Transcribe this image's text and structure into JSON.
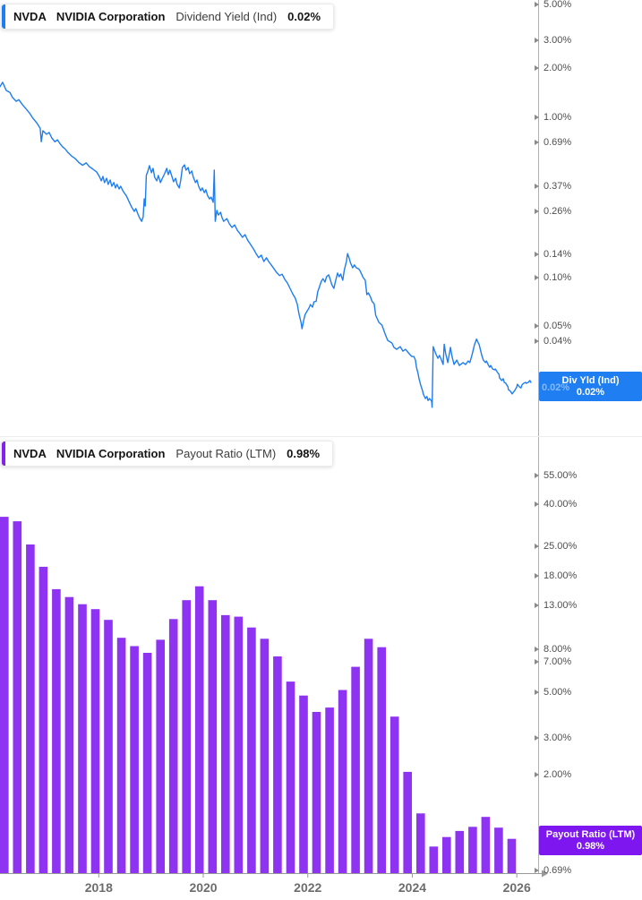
{
  "top_panel": {
    "legend": {
      "ticker": "NVDA",
      "company": "NVIDIA Corporation",
      "metric": "Dividend Yield (Ind)",
      "value": "0.02%"
    },
    "value_label": {
      "title": "Div Yld (Ind)",
      "value": "0.02%"
    },
    "hidden_tick_label": "0.02%",
    "y_ticks": [
      {
        "label": "5.00%",
        "v": 5
      },
      {
        "label": "3.00%",
        "v": 3
      },
      {
        "label": "2.00%",
        "v": 2
      },
      {
        "label": "1.00%",
        "v": 1
      },
      {
        "label": "0.69%",
        "v": 0.69
      },
      {
        "label": "0.37%",
        "v": 0.37
      },
      {
        "label": "0.26%",
        "v": 0.26
      },
      {
        "label": "0.14%",
        "v": 0.14
      },
      {
        "label": "0.10%",
        "v": 0.1
      },
      {
        "label": "0.05%",
        "v": 0.05
      },
      {
        "label": "0.04%",
        "v": 0.04
      }
    ]
  },
  "bottom_panel": {
    "legend": {
      "ticker": "NVDA",
      "company": "NVIDIA Corporation",
      "metric": "Payout Ratio (LTM)",
      "value": "0.98%"
    },
    "value_label": {
      "title": "Payout Ratio (LTM)",
      "value": "0.98%"
    },
    "y_ticks": [
      {
        "label": "55.00%",
        "v": 55
      },
      {
        "label": "40.00%",
        "v": 40
      },
      {
        "label": "25.00%",
        "v": 25
      },
      {
        "label": "18.00%",
        "v": 18
      },
      {
        "label": "13.00%",
        "v": 13
      },
      {
        "label": "8.00%",
        "v": 8
      },
      {
        "label": "7.00%",
        "v": 7
      },
      {
        "label": "5.00%",
        "v": 5
      },
      {
        "label": "3.00%",
        "v": 3
      },
      {
        "label": "2.00%",
        "v": 2
      },
      {
        "label": "0.69%",
        "v": 0.69
      }
    ]
  },
  "x_axis": {
    "year_labels": [
      "2018",
      "2020",
      "2022",
      "2024",
      "2026"
    ]
  },
  "colors": {
    "line_blue": "#1d7df2",
    "blue_box": "#1f7ff2",
    "blue_accent": "#1d7df2",
    "bar_purple": "#8d33f1",
    "purple_box": "#7d16ef",
    "purple_accent": "#8421ee",
    "axis_gray": "#b0b0b0",
    "xaxis_gray": "#999999",
    "tick_gray": "#8a8a8a"
  },
  "chart_data": [
    {
      "type": "line",
      "title": "NVDA NVIDIA Corporation Dividend Yield (Ind)",
      "series_name": "Div Yld (Ind)",
      "last_value_pct": 0.02,
      "y_scale": "log",
      "x_range_years": [
        2016.1,
        2026.4
      ],
      "ytick_values_pct": [
        5,
        3,
        2,
        1,
        0.69,
        0.37,
        0.26,
        0.14,
        0.1,
        0.05,
        0.04,
        0.02
      ],
      "legend_position": "top-left",
      "grid": false,
      "points": [
        [
          2016.11,
          1.54
        ],
        [
          2016.16,
          1.64
        ],
        [
          2016.23,
          1.46
        ],
        [
          2016.3,
          1.42
        ],
        [
          2016.35,
          1.32
        ],
        [
          2016.42,
          1.25
        ],
        [
          2016.47,
          1.28
        ],
        [
          2016.54,
          1.19
        ],
        [
          2016.61,
          1.12
        ],
        [
          2016.68,
          1.05
        ],
        [
          2016.74,
          0.98
        ],
        [
          2016.81,
          0.92
        ],
        [
          2016.88,
          0.85
        ],
        [
          2016.9,
          0.7
        ],
        [
          2016.93,
          0.82
        ],
        [
          2017.0,
          0.78
        ],
        [
          2017.05,
          0.8
        ],
        [
          2017.1,
          0.74
        ],
        [
          2017.16,
          0.7
        ],
        [
          2017.21,
          0.72
        ],
        [
          2017.26,
          0.68
        ],
        [
          2017.31,
          0.65
        ],
        [
          2017.36,
          0.63
        ],
        [
          2017.41,
          0.6
        ],
        [
          2017.48,
          0.57
        ],
        [
          2017.55,
          0.55
        ],
        [
          2017.62,
          0.52
        ],
        [
          2017.69,
          0.5
        ],
        [
          2017.76,
          0.517
        ],
        [
          2017.82,
          0.49
        ],
        [
          2017.89,
          0.472
        ],
        [
          2017.96,
          0.454
        ],
        [
          2018.01,
          0.426
        ],
        [
          2018.05,
          0.4
        ],
        [
          2018.08,
          0.426
        ],
        [
          2018.11,
          0.39
        ],
        [
          2018.15,
          0.415
        ],
        [
          2018.18,
          0.38
        ],
        [
          2018.22,
          0.405
        ],
        [
          2018.25,
          0.37
        ],
        [
          2018.29,
          0.39
        ],
        [
          2018.32,
          0.361
        ],
        [
          2018.35,
          0.38
        ],
        [
          2018.39,
          0.356
        ],
        [
          2018.42,
          0.37
        ],
        [
          2018.47,
          0.343
        ],
        [
          2018.53,
          0.322
        ],
        [
          2018.58,
          0.297
        ],
        [
          2018.63,
          0.274
        ],
        [
          2018.68,
          0.258
        ],
        [
          2018.71,
          0.269
        ],
        [
          2018.75,
          0.248
        ],
        [
          2018.78,
          0.236
        ],
        [
          2018.82,
          0.224
        ],
        [
          2018.85,
          0.239
        ],
        [
          2018.87,
          0.309
        ],
        [
          2018.89,
          0.279
        ],
        [
          2018.91,
          0.432
        ],
        [
          2018.94,
          0.46
        ],
        [
          2018.97,
          0.497
        ],
        [
          2019.01,
          0.449
        ],
        [
          2019.04,
          0.478
        ],
        [
          2019.07,
          0.421
        ],
        [
          2019.11,
          0.4
        ],
        [
          2019.14,
          0.432
        ],
        [
          2019.18,
          0.39
        ],
        [
          2019.21,
          0.41
        ],
        [
          2019.26,
          0.443
        ],
        [
          2019.3,
          0.478
        ],
        [
          2019.33,
          0.437
        ],
        [
          2019.36,
          0.466
        ],
        [
          2019.4,
          0.426
        ],
        [
          2019.43,
          0.395
        ],
        [
          2019.47,
          0.415
        ],
        [
          2019.5,
          0.38
        ],
        [
          2019.54,
          0.361
        ],
        [
          2019.57,
          0.405
        ],
        [
          2019.6,
          0.484
        ],
        [
          2019.64,
          0.503
        ],
        [
          2019.67,
          0.466
        ],
        [
          2019.71,
          0.484
        ],
        [
          2019.74,
          0.443
        ],
        [
          2019.78,
          0.46
        ],
        [
          2019.81,
          0.421
        ],
        [
          2019.85,
          0.39
        ],
        [
          2019.88,
          0.405
        ],
        [
          2019.91,
          0.37
        ],
        [
          2019.95,
          0.347
        ],
        [
          2019.98,
          0.361
        ],
        [
          2020.02,
          0.338
        ],
        [
          2020.05,
          0.352
        ],
        [
          2020.08,
          0.325
        ],
        [
          2020.12,
          0.309
        ],
        [
          2020.15,
          0.317
        ],
        [
          2020.19,
          0.294
        ],
        [
          2020.21,
          0.466
        ],
        [
          2020.23,
          0.224
        ],
        [
          2020.26,
          0.262
        ],
        [
          2020.29,
          0.245
        ],
        [
          2020.33,
          0.255
        ],
        [
          2020.36,
          0.236
        ],
        [
          2020.39,
          0.224
        ],
        [
          2020.45,
          0.233
        ],
        [
          2020.5,
          0.216
        ],
        [
          2020.55,
          0.205
        ],
        [
          2020.6,
          0.213
        ],
        [
          2020.65,
          0.197
        ],
        [
          2020.7,
          0.188
        ],
        [
          2020.75,
          0.178
        ],
        [
          2020.8,
          0.185
        ],
        [
          2020.85,
          0.171
        ],
        [
          2020.91,
          0.16
        ],
        [
          2020.96,
          0.151
        ],
        [
          2021.01,
          0.141
        ],
        [
          2021.06,
          0.133
        ],
        [
          2021.11,
          0.138
        ],
        [
          2021.16,
          0.126
        ],
        [
          2021.21,
          0.133
        ],
        [
          2021.25,
          0.126
        ],
        [
          2021.3,
          0.12
        ],
        [
          2021.35,
          0.114
        ],
        [
          2021.4,
          0.108
        ],
        [
          2021.46,
          0.103
        ],
        [
          2021.51,
          0.105
        ],
        [
          2021.56,
          0.0975
        ],
        [
          2021.61,
          0.0925
        ],
        [
          2021.66,
          0.0857
        ],
        [
          2021.71,
          0.0794
        ],
        [
          2021.76,
          0.0745
        ],
        [
          2021.8,
          0.0681
        ],
        [
          2021.83,
          0.0598
        ],
        [
          2021.87,
          0.0527
        ],
        [
          2021.89,
          0.0481
        ],
        [
          2021.92,
          0.054
        ],
        [
          2021.95,
          0.059
        ],
        [
          2021.99,
          0.0622
        ],
        [
          2022.02,
          0.0643
        ],
        [
          2022.05,
          0.0681
        ],
        [
          2022.09,
          0.0655
        ],
        [
          2022.12,
          0.0707
        ],
        [
          2022.16,
          0.0712
        ],
        [
          2022.19,
          0.0814
        ],
        [
          2022.23,
          0.0891
        ],
        [
          2022.26,
          0.095
        ],
        [
          2022.29,
          0.0985
        ],
        [
          2022.33,
          0.0938
        ],
        [
          2022.36,
          0.1013
        ],
        [
          2022.4,
          0.104
        ],
        [
          2022.43,
          0.0975
        ],
        [
          2022.46,
          0.0903
        ],
        [
          2022.5,
          0.0857
        ],
        [
          2022.53,
          0.095
        ],
        [
          2022.57,
          0.1067
        ],
        [
          2022.6,
          0.1013
        ],
        [
          2022.63,
          0.1053
        ],
        [
          2022.67,
          0.0963
        ],
        [
          2022.7,
          0.112
        ],
        [
          2022.74,
          0.126
        ],
        [
          2022.76,
          0.141
        ],
        [
          2022.79,
          0.133
        ],
        [
          2022.82,
          0.123
        ],
        [
          2022.86,
          0.115
        ],
        [
          2022.89,
          0.12
        ],
        [
          2022.93,
          0.115
        ],
        [
          2022.96,
          0.114
        ],
        [
          2022.99,
          0.112
        ],
        [
          2023.03,
          0.105
        ],
        [
          2023.06,
          0.1
        ],
        [
          2023.1,
          0.0963
        ],
        [
          2023.13,
          0.0784
        ],
        [
          2023.16,
          0.0804
        ],
        [
          2023.2,
          0.0757
        ],
        [
          2023.23,
          0.0712
        ],
        [
          2023.27,
          0.0687
        ],
        [
          2023.3,
          0.0583
        ],
        [
          2023.36,
          0.0527
        ],
        [
          2023.42,
          0.0506
        ],
        [
          2023.48,
          0.0446
        ],
        [
          2023.53,
          0.0407
        ],
        [
          2023.61,
          0.0392
        ],
        [
          2023.65,
          0.0368
        ],
        [
          2023.7,
          0.0358
        ],
        [
          2023.77,
          0.0372
        ],
        [
          2023.82,
          0.0349
        ],
        [
          2023.87,
          0.0358
        ],
        [
          2023.94,
          0.0336
        ],
        [
          2023.99,
          0.0323
        ],
        [
          2024.03,
          0.0323
        ],
        [
          2024.06,
          0.0307
        ],
        [
          2024.08,
          0.0277
        ],
        [
          2024.11,
          0.0253
        ],
        [
          2024.13,
          0.0235
        ],
        [
          2024.16,
          0.0215
        ],
        [
          2024.2,
          0.0196
        ],
        [
          2024.21,
          0.0189
        ],
        [
          2024.25,
          0.0177
        ],
        [
          2024.28,
          0.0182
        ],
        [
          2024.3,
          0.0172
        ],
        [
          2024.33,
          0.0177
        ],
        [
          2024.37,
          0.017
        ],
        [
          2024.38,
          0.0156
        ],
        [
          2024.4,
          0.0372
        ],
        [
          2024.45,
          0.0336
        ],
        [
          2024.49,
          0.0315
        ],
        [
          2024.52,
          0.0328
        ],
        [
          2024.56,
          0.0307
        ],
        [
          2024.59,
          0.0288
        ],
        [
          2024.61,
          0.0385
        ],
        [
          2024.64,
          0.0336
        ],
        [
          2024.68,
          0.0296
        ],
        [
          2024.73,
          0.0368
        ],
        [
          2024.76,
          0.0323
        ],
        [
          2024.8,
          0.0288
        ],
        [
          2024.85,
          0.0307
        ],
        [
          2024.9,
          0.0284
        ],
        [
          2024.97,
          0.0296
        ],
        [
          2025.02,
          0.0288
        ],
        [
          2025.07,
          0.0303
        ],
        [
          2025.1,
          0.0296
        ],
        [
          2025.14,
          0.0328
        ],
        [
          2025.16,
          0.0349
        ],
        [
          2025.19,
          0.0382
        ],
        [
          2025.23,
          0.0415
        ],
        [
          2025.24,
          0.0407
        ],
        [
          2025.28,
          0.0382
        ],
        [
          2025.31,
          0.0349
        ],
        [
          2025.33,
          0.0328
        ],
        [
          2025.36,
          0.0307
        ],
        [
          2025.4,
          0.0296
        ],
        [
          2025.42,
          0.0303
        ],
        [
          2025.45,
          0.0288
        ],
        [
          2025.48,
          0.0277
        ],
        [
          2025.5,
          0.0284
        ],
        [
          2025.54,
          0.027
        ],
        [
          2025.57,
          0.0267
        ],
        [
          2025.59,
          0.027
        ],
        [
          2025.62,
          0.026
        ],
        [
          2025.66,
          0.025
        ],
        [
          2025.67,
          0.0238
        ],
        [
          2025.71,
          0.0229
        ],
        [
          2025.74,
          0.0235
        ],
        [
          2025.76,
          0.0223
        ],
        [
          2025.79,
          0.022
        ],
        [
          2025.83,
          0.0209
        ],
        [
          2025.84,
          0.0201
        ],
        [
          2025.88,
          0.0196
        ],
        [
          2025.91,
          0.0189
        ],
        [
          2025.93,
          0.0193
        ],
        [
          2025.96,
          0.0198
        ],
        [
          2026.0,
          0.0209
        ],
        [
          2026.01,
          0.0217
        ],
        [
          2026.05,
          0.0209
        ],
        [
          2026.08,
          0.0206
        ],
        [
          2026.1,
          0.0215
        ],
        [
          2026.13,
          0.022
        ],
        [
          2026.17,
          0.0223
        ],
        [
          2026.18,
          0.022
        ],
        [
          2026.22,
          0.0223
        ],
        [
          2026.25,
          0.0229
        ],
        [
          2026.27,
          0.0223
        ]
      ]
    },
    {
      "type": "bar",
      "title": "NVDA NVIDIA Corporation Payout Ratio (LTM)",
      "series_name": "Payout Ratio (LTM)",
      "last_value_pct": 0.98,
      "y_scale": "log",
      "ytick_values_pct": [
        55,
        40,
        25,
        18,
        13,
        8,
        7,
        5,
        3,
        2,
        0.98,
        0.69
      ],
      "xtick_years": [
        2018,
        2020,
        2022,
        2024,
        2026
      ],
      "legend_position": "top-left",
      "grid": false,
      "categories": [
        "2016-Q1",
        "2016-Q2",
        "2016-Q3",
        "2016-Q4",
        "2017-Q1",
        "2017-Q2",
        "2017-Q3",
        "2017-Q4",
        "2018-Q1",
        "2018-Q2",
        "2018-Q3",
        "2018-Q4",
        "2019-Q1",
        "2019-Q2",
        "2019-Q3",
        "2019-Q4",
        "2020-Q1",
        "2020-Q2",
        "2020-Q3",
        "2020-Q4",
        "2021-Q1",
        "2021-Q2",
        "2021-Q3",
        "2021-Q4",
        "2022-Q1",
        "2022-Q2",
        "2022-Q3",
        "2022-Q4",
        "2023-Q1",
        "2023-Q2",
        "2023-Q3",
        "2023-Q4",
        "2024-Q1",
        "2024-Q2",
        "2024-Q3",
        "2024-Q4",
        "2025-Q1",
        "2025-Q2",
        "2025-Q3",
        "2025-Q4"
      ],
      "values": [
        34.8,
        33.1,
        25.6,
        20.0,
        15.6,
        14.3,
        13.2,
        12.5,
        11.1,
        9.1,
        8.3,
        7.7,
        8.9,
        11.2,
        13.8,
        16.1,
        13.8,
        11.7,
        11.5,
        10.2,
        9.0,
        7.4,
        5.6,
        4.8,
        4.0,
        4.2,
        5.1,
        6.6,
        9.0,
        8.2,
        3.8,
        2.06,
        1.3,
        0.9,
        1.0,
        1.07,
        1.12,
        1.25,
        1.11,
        0.98
      ]
    }
  ]
}
